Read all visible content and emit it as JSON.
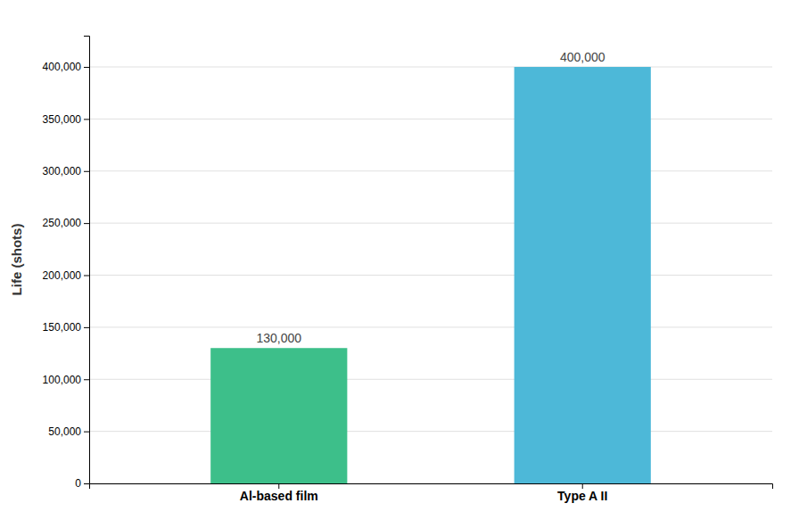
{
  "chart_data": {
    "type": "bar",
    "categories": [
      "Al-based film",
      "Type A II"
    ],
    "values": [
      130000,
      400000
    ],
    "value_labels": [
      "130,000",
      "400,000"
    ],
    "colors": [
      "#3dbf8a",
      "#4db8d8"
    ],
    "ylabel": "Life (shots)",
    "ylim": [
      0,
      430000
    ],
    "yticks": [
      0,
      {
        "value": 50000,
        "label": "50,000"
      },
      {
        "value": 100000,
        "label": "100,000"
      },
      {
        "value": 150000,
        "label": "150,000"
      },
      {
        "value": 200000,
        "label": "200,000"
      },
      {
        "value": 250000,
        "label": "250,000"
      },
      {
        "value": 300000,
        "label": "300,000"
      },
      {
        "value": 350000,
        "label": "350,000"
      },
      {
        "value": 400000,
        "label": "400,000"
      }
    ],
    "grid": true,
    "data_labels": true
  }
}
